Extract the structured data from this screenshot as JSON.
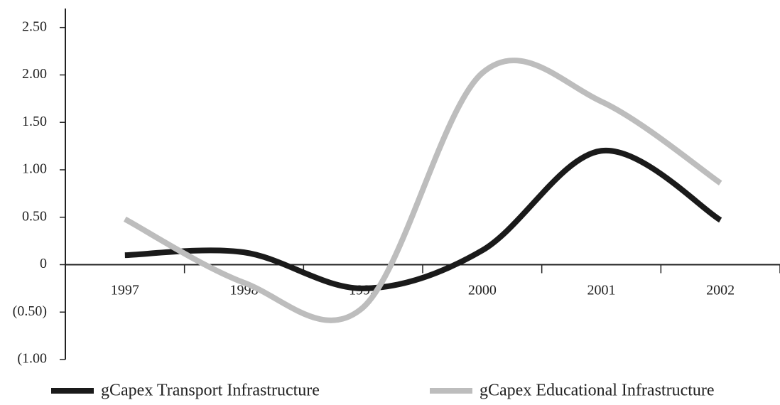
{
  "chart_data": {
    "type": "line",
    "categories": [
      "1997",
      "1998",
      "1999",
      "2000",
      "2001",
      "2002"
    ],
    "series": [
      {
        "name": "gCapex Transport Infrastructure",
        "color": "#1a1a1a",
        "values": [
          0.1,
          0.13,
          -0.25,
          0.15,
          1.2,
          0.47
        ]
      },
      {
        "name": "gCapex Educational Infrastructure",
        "color": "#bdbdbd",
        "values": [
          0.48,
          -0.19,
          -0.45,
          2.02,
          1.72,
          0.86
        ]
      }
    ],
    "ylim": [
      -1.0,
      2.7
    ],
    "yticks": [
      {
        "value": 2.5,
        "label": "2.50"
      },
      {
        "value": 2.0,
        "label": "2.00"
      },
      {
        "value": 1.5,
        "label": "1.50"
      },
      {
        "value": 1.0,
        "label": "1.00"
      },
      {
        "value": 0.5,
        "label": "0.50"
      },
      0,
      {
        "value": -0.5,
        "label": "(0.50)"
      },
      {
        "value": -1.0,
        "label": "(1.00"
      }
    ],
    "smooth": true,
    "grid": false,
    "legend": "bottom"
  }
}
